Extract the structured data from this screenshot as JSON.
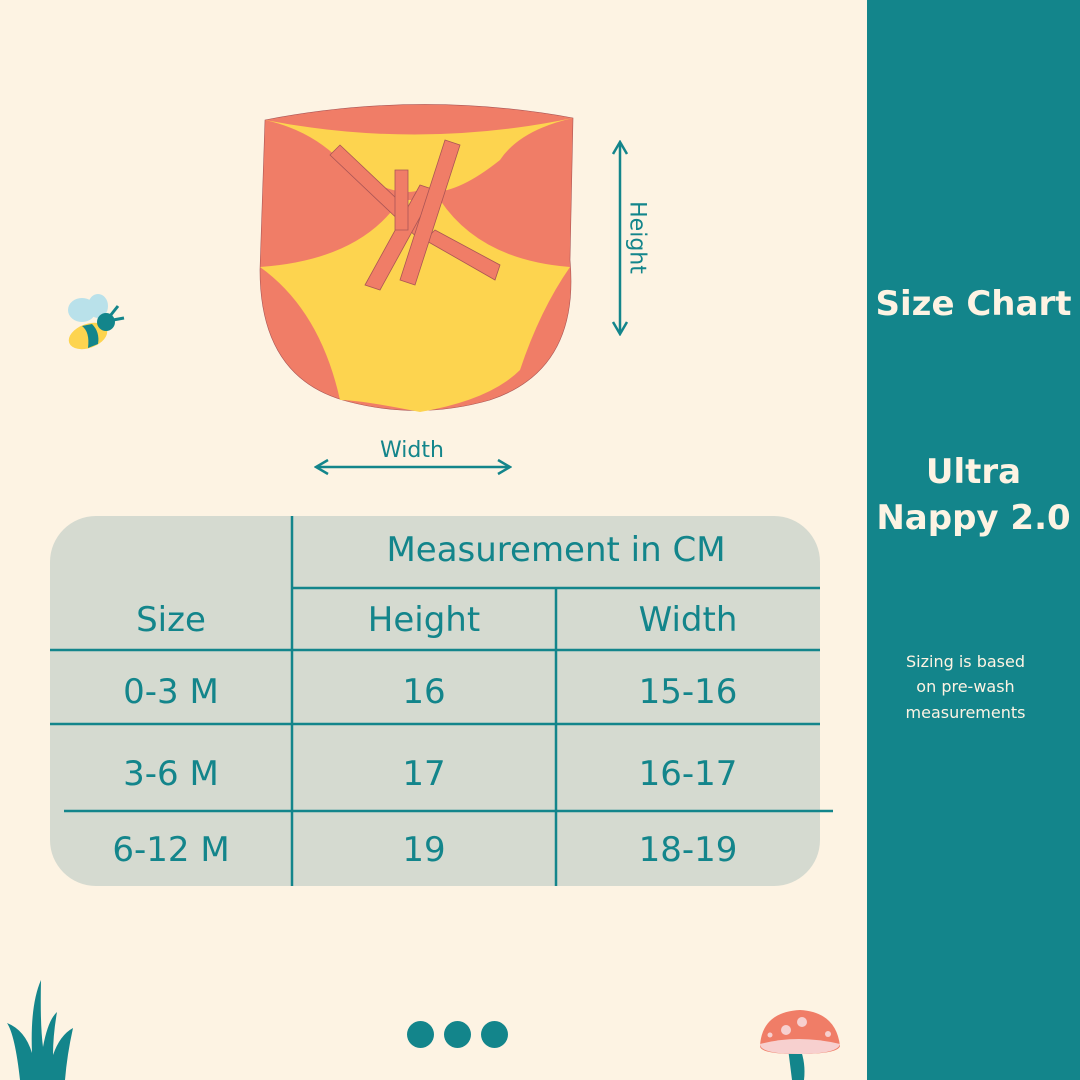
{
  "colors": {
    "background": "#fdf3e3",
    "accent": "#13858b",
    "table_bg": "#d5dad0",
    "coral": "#f07d67",
    "yellow": "#fdd44f"
  },
  "illustration": {
    "height_label": "Height",
    "width_label": "Width"
  },
  "sidebar": {
    "title": "Size Chart",
    "product_line1": "Ultra",
    "product_line2": "Nappy 2.0",
    "note_line1": "Sizing is based",
    "note_line2": "on pre-wash",
    "note_line3": "measurements"
  },
  "table": {
    "size_header": "Size",
    "group_header": "Measurement in CM",
    "columns": [
      "Height",
      "Width"
    ],
    "rows": [
      {
        "size": "0-3 M",
        "height": "16",
        "width": "15-16"
      },
      {
        "size": "3-6 M",
        "height": "17",
        "width": "16-17"
      },
      {
        "size": "6-12 M",
        "height": "19",
        "width": "18-19"
      }
    ]
  },
  "pagination": {
    "dots": 3
  }
}
